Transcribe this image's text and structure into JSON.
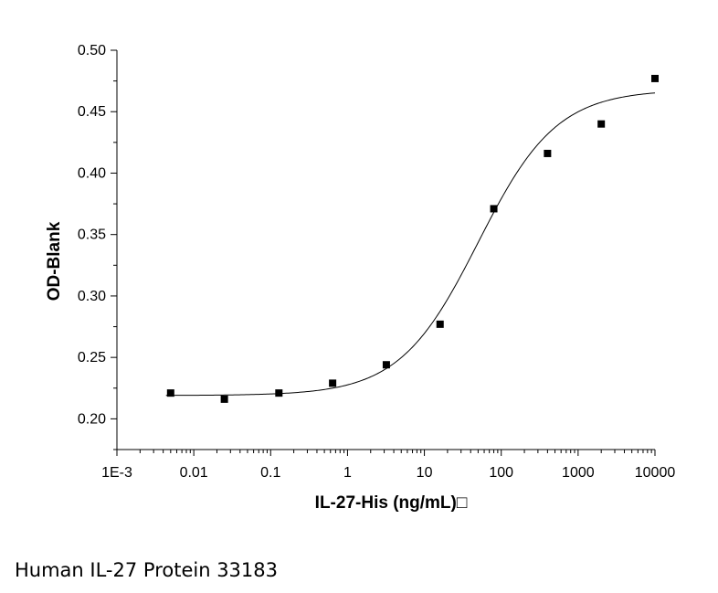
{
  "chart_data": {
    "type": "scatter",
    "title": "",
    "xlabel": "IL-27-His (ng/mL)□",
    "ylabel": "OD-Blank",
    "x_scale": "log",
    "xlim": [
      0.001,
      10000
    ],
    "ylim": [
      0.175,
      0.5
    ],
    "x_ticks": [
      0.001,
      0.01,
      0.1,
      1,
      10,
      100,
      1000,
      10000
    ],
    "x_tick_labels": [
      "1E-3",
      "0.01",
      "0.1",
      "1",
      "10",
      "100",
      "1000",
      "10000"
    ],
    "y_ticks": [
      0.2,
      0.25,
      0.3,
      0.35,
      0.4,
      0.45,
      0.5
    ],
    "y_tick_labels": [
      "0.20",
      "0.25",
      "0.30",
      "0.35",
      "0.40",
      "0.45",
      "0.50"
    ],
    "grid": false,
    "legend": "none",
    "series": [
      {
        "marker": "square",
        "color": "#000000",
        "x": [
          0.005,
          0.025,
          0.128,
          0.64,
          3.2,
          16,
          80,
          400,
          2000,
          10000
        ],
        "y": [
          0.221,
          0.216,
          0.221,
          0.229,
          0.244,
          0.277,
          0.371,
          0.416,
          0.44,
          0.477
        ]
      }
    ],
    "fit": {
      "type": "four-parameter-logistic",
      "color": "#000000",
      "bottom": 0.219,
      "top": 0.468,
      "ec50": 50,
      "hill": 0.85
    }
  },
  "caption": "Human IL-27 Protein 33183"
}
